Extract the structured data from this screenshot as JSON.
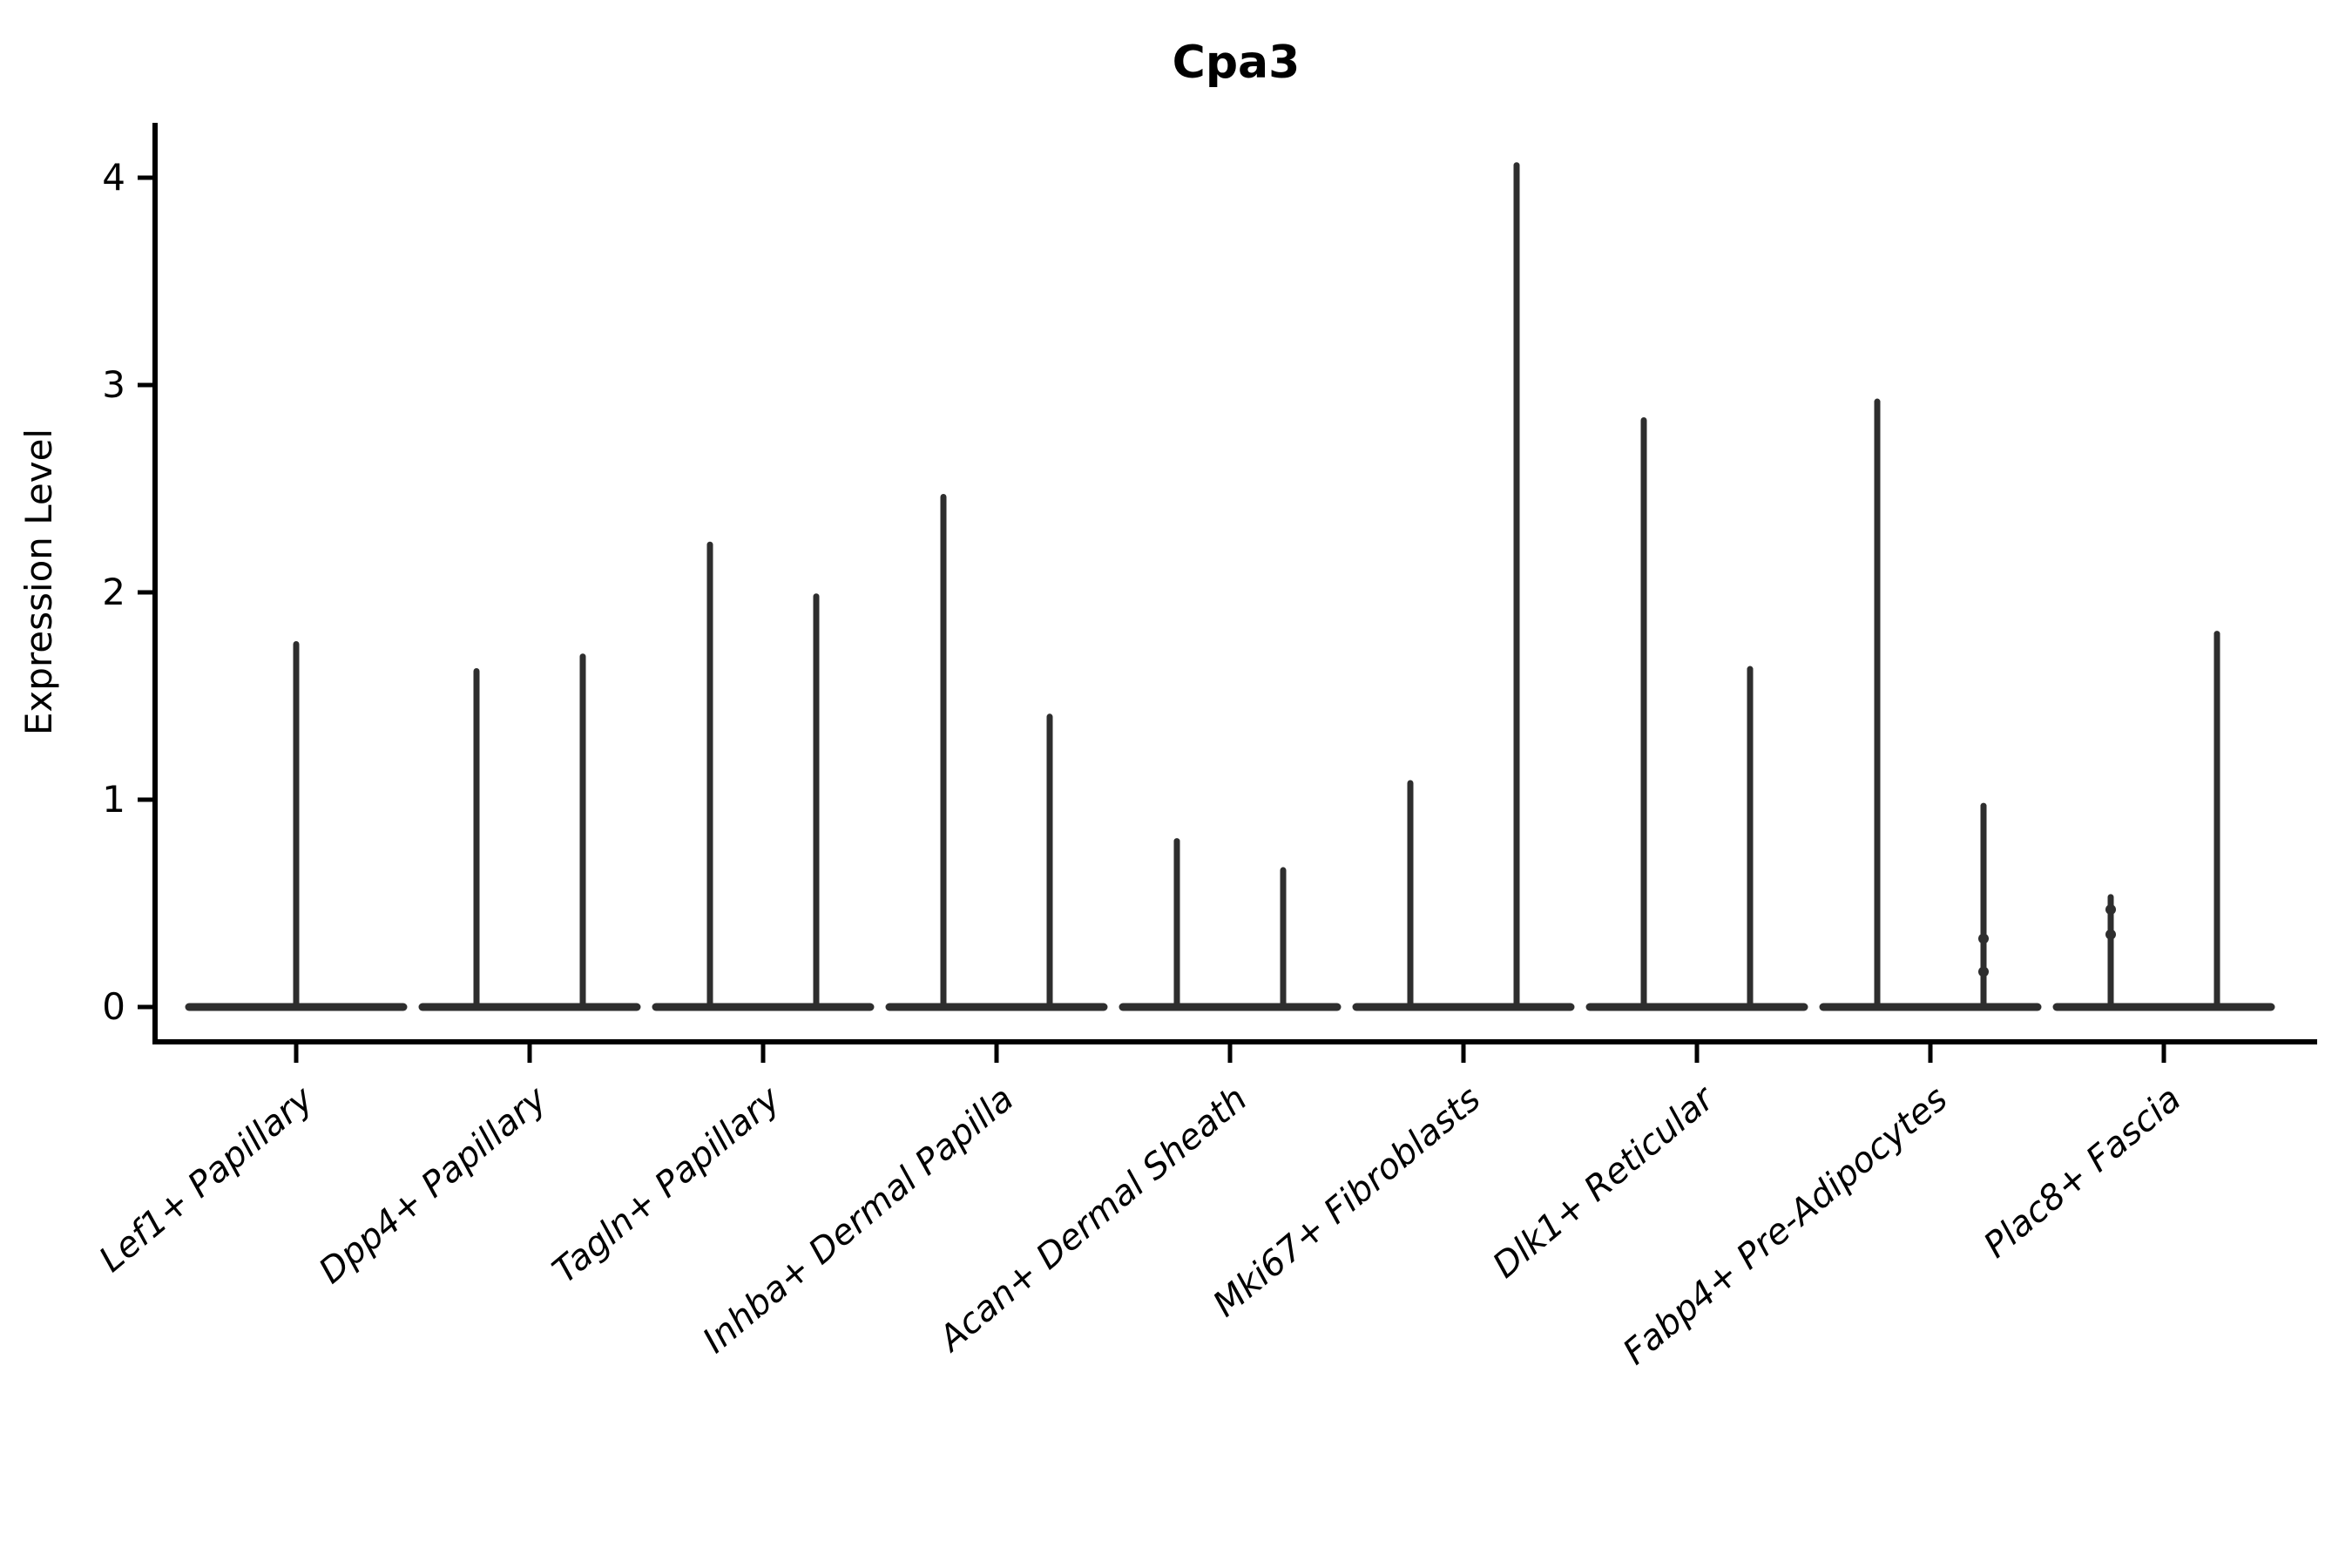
{
  "title": "Cpa3",
  "colors": {
    "violin": "#2e2e2e",
    "axis": "#000000",
    "text": "#000000",
    "background": "#ffffff"
  },
  "chart_data": {
    "type": "violin",
    "title": "Cpa3",
    "xlabel": "",
    "ylabel": "Expression Level",
    "ylim": [
      -0.17,
      4.27
    ],
    "yticks": [
      0,
      1,
      2,
      3,
      4
    ],
    "grid": false,
    "legend": null,
    "note": "Sparse single-cell expression violins: each violin is a wide flat base at 0 with a thin density spike rising to the max expression value. Categories 2-9 contain two side-by-side violins; category 1 contains one full-width violin.",
    "categories": [
      "Lef1+ Papillary",
      "Dpp4+ Papillary",
      "Tagln+ Papillary",
      "Inhba+ Dermal Papilla",
      "Acan+ Dermal Sheath",
      "Mki67+ Fibroblasts",
      "Dlk1+ Reticular",
      "Fabp4+ Pre-Adipocytes",
      "Plac8+ Fascia"
    ],
    "series": [
      {
        "category": "Lef1+ Papillary",
        "violins": [
          {
            "offset": 0,
            "max": 1.75,
            "dots": []
          }
        ]
      },
      {
        "category": "Dpp4+ Papillary",
        "violins": [
          {
            "offset": -61,
            "max": 1.62,
            "dots": []
          },
          {
            "offset": 61,
            "max": 1.69,
            "dots": []
          }
        ]
      },
      {
        "category": "Tagln+ Papillary",
        "violins": [
          {
            "offset": -61,
            "max": 2.23,
            "dots": []
          },
          {
            "offset": 61,
            "max": 1.98,
            "dots": []
          }
        ]
      },
      {
        "category": "Inhba+ Dermal Papilla",
        "violins": [
          {
            "offset": -61,
            "max": 2.46,
            "dots": []
          },
          {
            "offset": 61,
            "max": 1.4,
            "dots": []
          }
        ]
      },
      {
        "category": "Acan+ Dermal Sheath",
        "violins": [
          {
            "offset": -61,
            "max": 0.8,
            "dots": []
          },
          {
            "offset": 61,
            "max": 0.66,
            "dots": []
          }
        ]
      },
      {
        "category": "Mki67+ Fibroblasts",
        "violins": [
          {
            "offset": -61,
            "max": 1.08,
            "dots": []
          },
          {
            "offset": 61,
            "max": 4.06,
            "dots": []
          }
        ]
      },
      {
        "category": "Dlk1+ Reticular",
        "violins": [
          {
            "offset": -61,
            "max": 2.83,
            "dots": []
          },
          {
            "offset": 61,
            "max": 1.63,
            "dots": []
          }
        ]
      },
      {
        "category": "Fabp4+ Pre-Adipocytes",
        "violins": [
          {
            "offset": -61,
            "max": 2.92,
            "dots": []
          },
          {
            "offset": 61,
            "max": 0.97,
            "dots": [
              0.33,
              0.17
            ]
          }
        ]
      },
      {
        "category": "Plac8+ Fascia",
        "violins": [
          {
            "offset": -61,
            "max": 0.53,
            "dots": [
              0.47,
              0.35
            ]
          },
          {
            "offset": 61,
            "max": 1.8,
            "dots": []
          }
        ]
      }
    ]
  }
}
